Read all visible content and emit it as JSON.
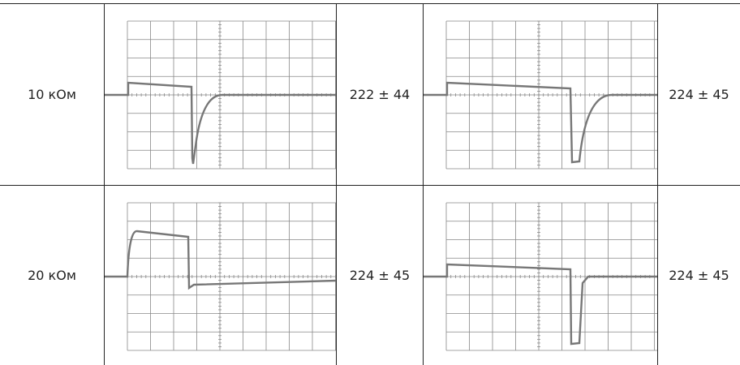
{
  "table": {
    "rows": [
      {
        "label": "10 кОм",
        "values": [
          "222 ± 44",
          "224 ± 45"
        ]
      },
      {
        "label": "20 кОм",
        "values": [
          "224 ± 45",
          "224 ± 45"
        ]
      }
    ]
  }
}
